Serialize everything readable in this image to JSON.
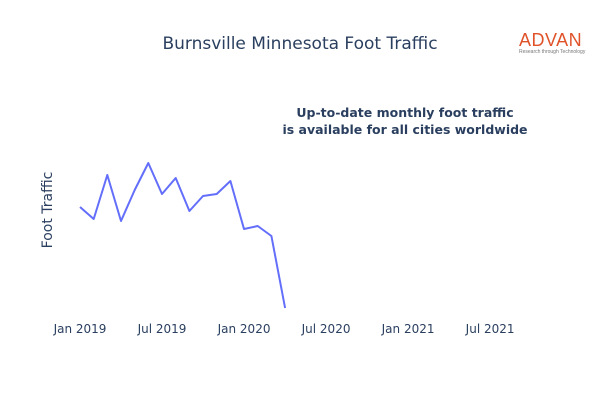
{
  "chart_data": {
    "type": "line",
    "title": "Burnsville Minnesota Foot Traffic",
    "xlabel": "",
    "ylabel": "Foot Traffic",
    "x": [
      "2019-01",
      "2019-02",
      "2019-03",
      "2019-04",
      "2019-05",
      "2019-06",
      "2019-07",
      "2019-08",
      "2019-09",
      "2019-10",
      "2019-11",
      "2019-12",
      "2020-01",
      "2020-02",
      "2020-03",
      "2020-04"
    ],
    "series": [
      {
        "values": [
          113,
          101,
          145,
          99,
          130,
          157,
          126,
          142,
          109,
          124,
          126,
          139,
          91,
          94,
          84,
          12
        ],
        "color": "#636efa"
      }
    ],
    "xticks": [
      "Jan 2019",
      "Jul 2019",
      "Jan 2020",
      "Jul 2020",
      "Jan 2021",
      "Jul 2021"
    ],
    "xtick_dates": [
      "2019-01",
      "2019-07",
      "2020-01",
      "2020-07",
      "2021-01",
      "2021-07"
    ],
    "xlim": [
      "2018-12",
      "2021-10"
    ],
    "ylim": [
      0,
      220
    ],
    "grid": false,
    "yticks_shown": false,
    "annotation": [
      "Up-to-date monthly foot traffic",
      "is available for all cities worldwide"
    ]
  },
  "logo": {
    "brand": "ADVAN",
    "tagline": "Research through Technology"
  }
}
